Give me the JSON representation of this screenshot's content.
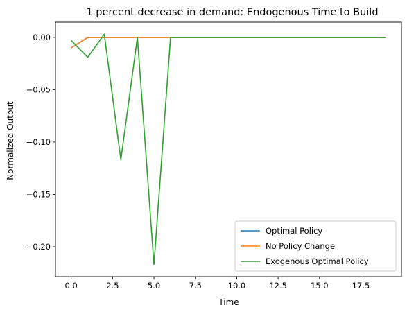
{
  "chart_data": {
    "type": "line",
    "title": "1 percent decrease in demand: Endogenous Time to Build",
    "xlabel": "Time",
    "ylabel": "Normalized Output",
    "xlim": [
      -0.95,
      19.95
    ],
    "ylim": [
      -0.2285,
      0.0145
    ],
    "xticks": [
      0.0,
      2.5,
      5.0,
      7.5,
      10.0,
      12.5,
      15.0,
      17.5
    ],
    "xtick_labels": [
      "0.0",
      "2.5",
      "5.0",
      "7.5",
      "10.0",
      "12.5",
      "15.0",
      "17.5"
    ],
    "yticks": [
      0.0,
      -0.05,
      -0.1,
      -0.15,
      -0.2
    ],
    "ytick_labels": [
      "0.00",
      "−0.05",
      "−0.10",
      "−0.15",
      "−0.20"
    ],
    "grid": false,
    "legend_position": "lower-right",
    "x": [
      0,
      1,
      2,
      3,
      4,
      5,
      6,
      7,
      8,
      9,
      10,
      11,
      12,
      13,
      14,
      15,
      16,
      17,
      18,
      19
    ],
    "series": [
      {
        "name": "Optimal Policy",
        "color": "#1f77b4",
        "values": [
          -0.01,
          0,
          0,
          0,
          0,
          0,
          0,
          0,
          0,
          0,
          0,
          0,
          0,
          0,
          0,
          0,
          0,
          0,
          0,
          0
        ]
      },
      {
        "name": "No Policy Change",
        "color": "#ff7f0e",
        "values": [
          -0.01,
          0,
          0,
          0,
          0,
          0,
          0,
          0,
          0,
          0,
          0,
          0,
          0,
          0,
          0,
          0,
          0,
          0,
          0,
          0
        ]
      },
      {
        "name": "Exogenous Optimal Policy",
        "color": "#2ca02c",
        "values": [
          -0.003,
          -0.019,
          0.003,
          -0.117,
          0.0,
          -0.217,
          0,
          0,
          0,
          0,
          0,
          0,
          0,
          0,
          0,
          0,
          0,
          0,
          0,
          0
        ]
      }
    ]
  }
}
